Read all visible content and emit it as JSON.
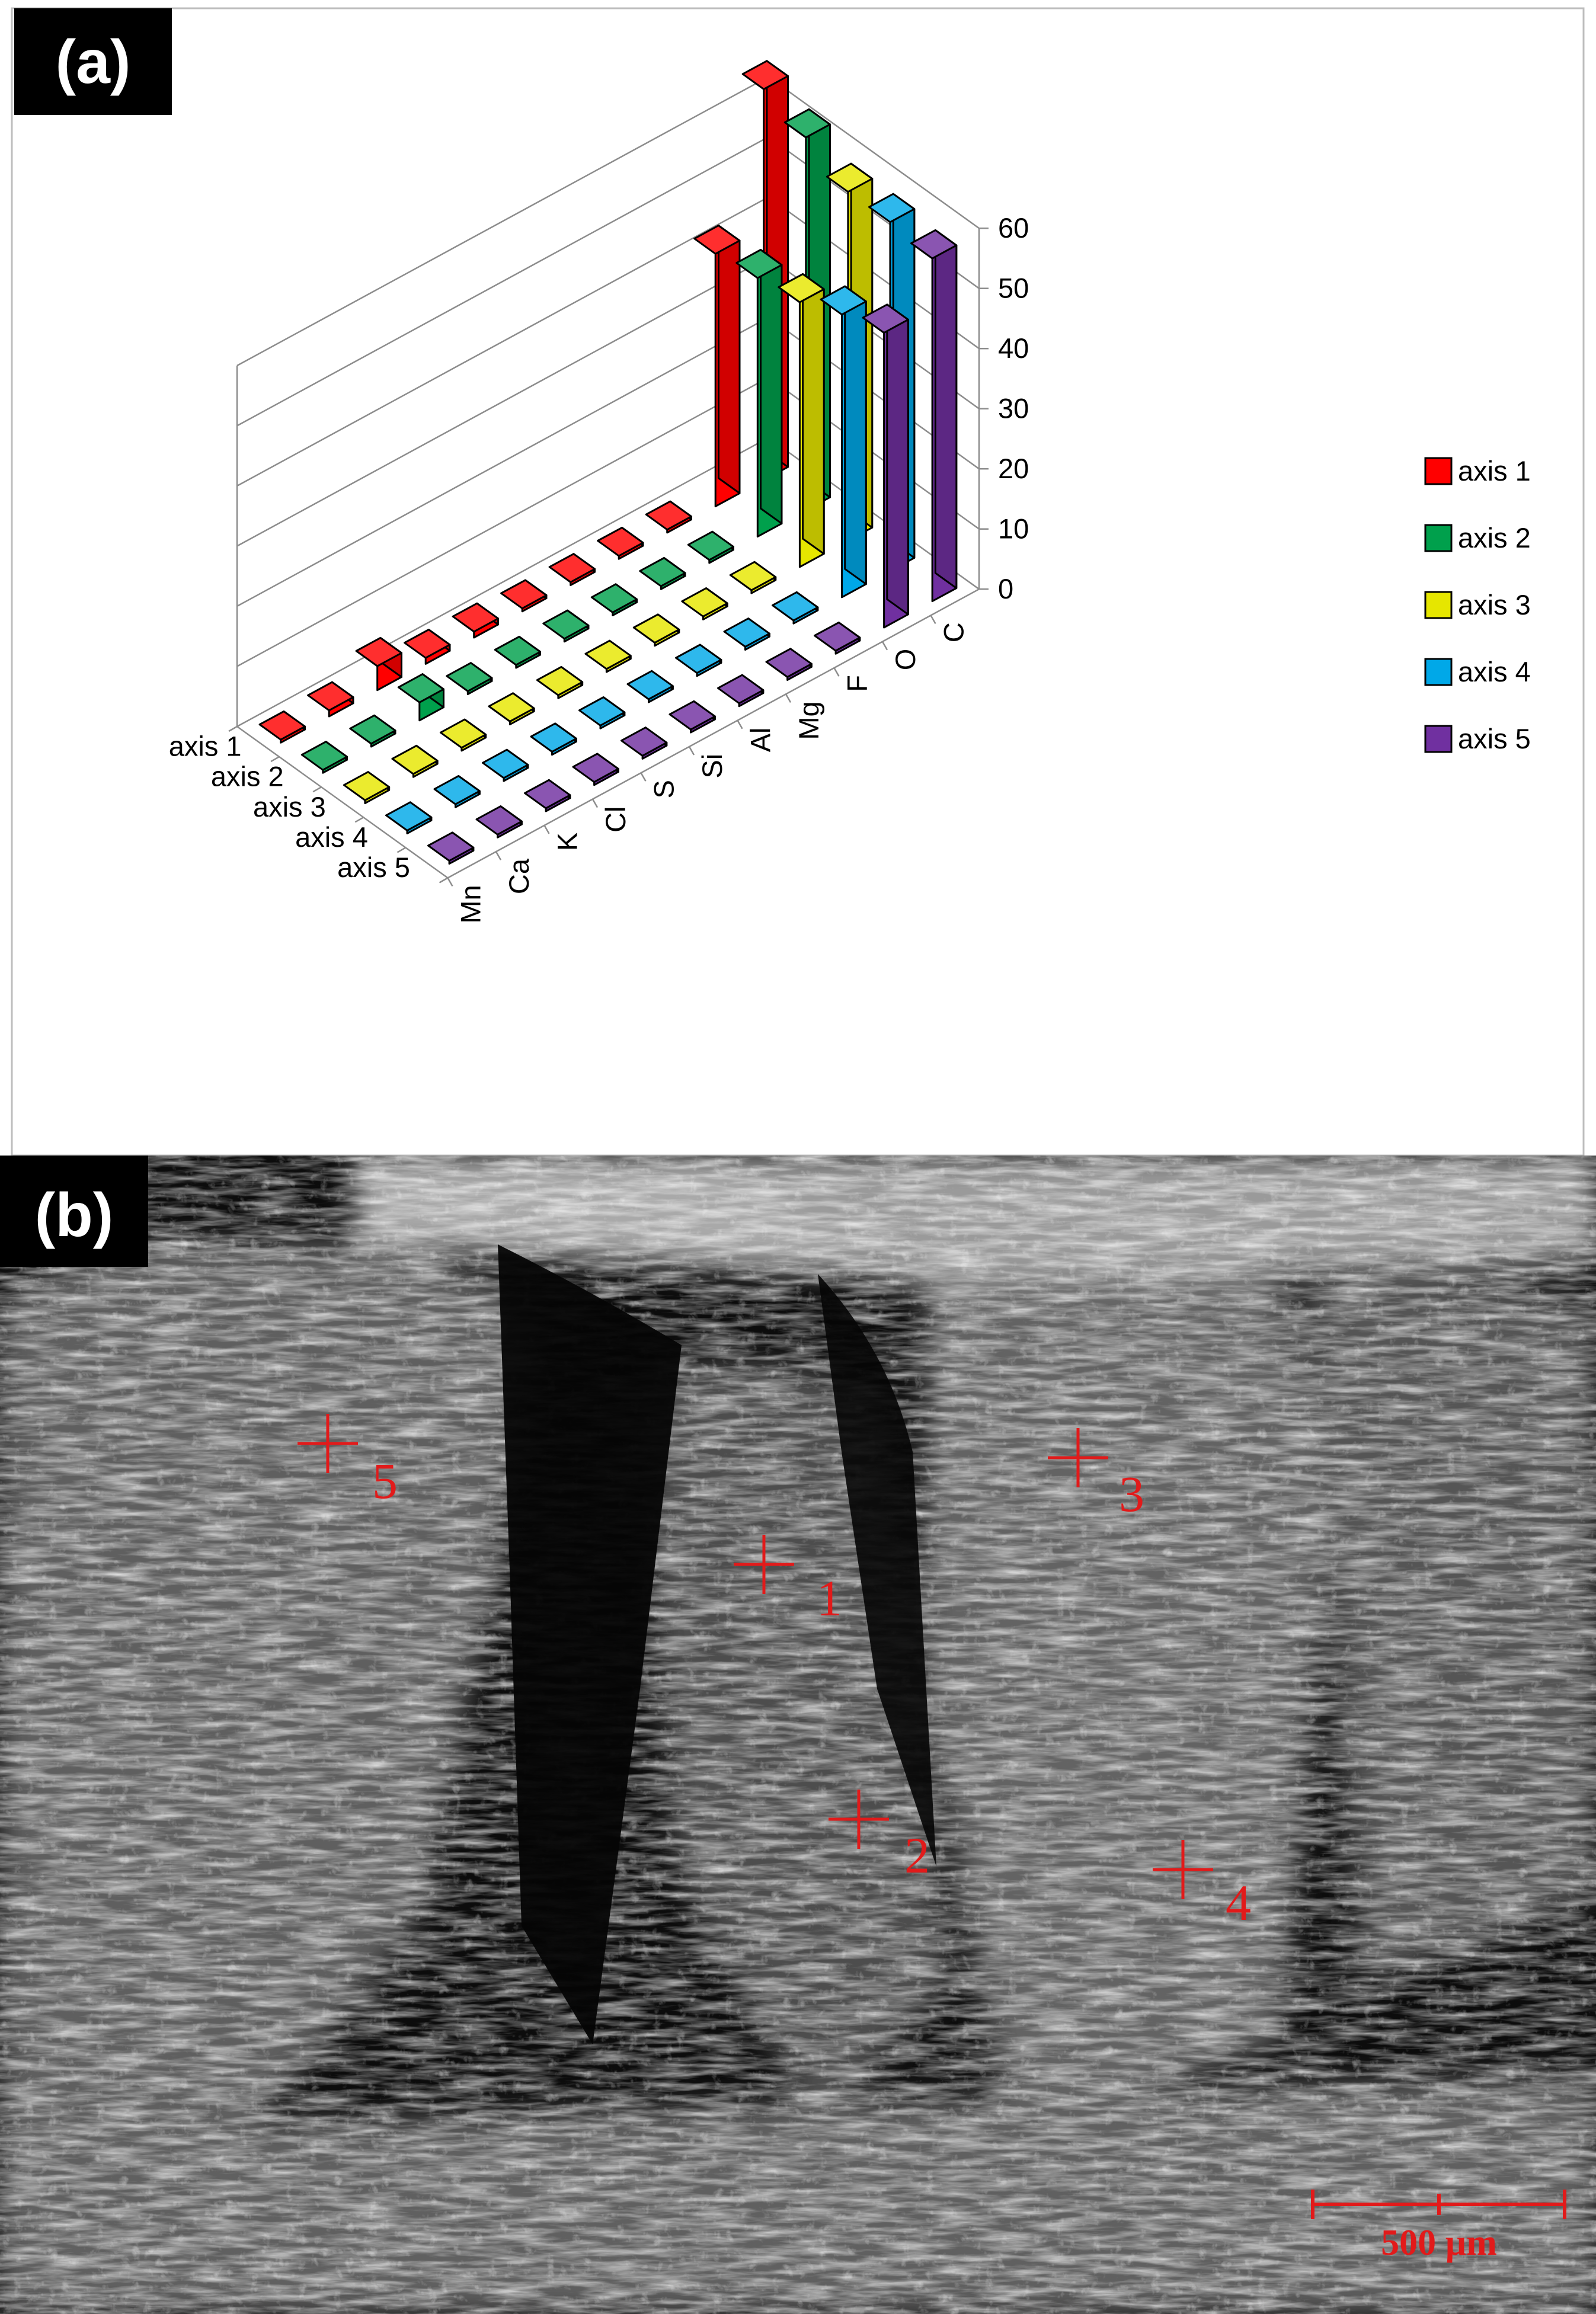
{
  "panel_a": {
    "label": "(a)"
  },
  "panel_b": {
    "label": "(b)",
    "markers": [
      "1",
      "2",
      "3",
      "4",
      "5"
    ],
    "scale_bar": "500 µm"
  },
  "chart_data": {
    "type": "bar3d",
    "title": "",
    "categories": [
      "Mn",
      "Ca",
      "K",
      "Cl",
      "S",
      "Si",
      "Al",
      "Mg",
      "F",
      "O",
      "C"
    ],
    "zlim": [
      0,
      60
    ],
    "zticks": [
      "0",
      "10",
      "20",
      "30",
      "40",
      "50",
      "60"
    ],
    "legend_position": "right",
    "series": [
      {
        "name": "axis 1",
        "color": "#ff0000",
        "values": [
          0.5,
          1,
          4,
          1,
          1,
          0.5,
          0.5,
          0.5,
          0.5,
          42,
          65
        ]
      },
      {
        "name": "axis 2",
        "color": "#00a04c",
        "values": [
          0.5,
          0.5,
          3,
          0.5,
          0.5,
          0.5,
          0.5,
          0.5,
          0.5,
          43,
          62
        ]
      },
      {
        "name": "axis 3",
        "color": "#e6e600",
        "values": [
          0.5,
          0.5,
          0.5,
          0.5,
          0.5,
          0.5,
          0.5,
          0.5,
          0.5,
          44,
          58
        ]
      },
      {
        "name": "axis 4",
        "color": "#00a8e8",
        "values": [
          0.5,
          0.5,
          0.5,
          0.5,
          0.5,
          0.5,
          0.5,
          0.5,
          0.5,
          47,
          58
        ]
      },
      {
        "name": "axis 5",
        "color": "#7030a0",
        "values": [
          0.5,
          0.5,
          0.5,
          0.5,
          0.5,
          0.5,
          0.5,
          0.5,
          0.5,
          49,
          57
        ]
      }
    ]
  }
}
